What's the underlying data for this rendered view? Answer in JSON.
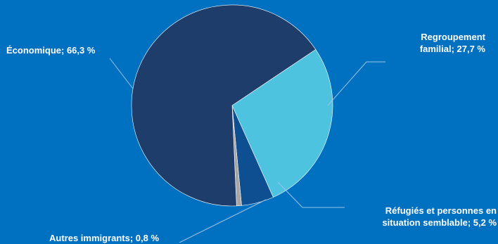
{
  "chart_data": {
    "type": "pie",
    "slices": [
      {
        "label": "Économique; 66,3 %",
        "category": "Économique",
        "value": 66.3,
        "color": "#1F3D6B"
      },
      {
        "label": "Regroupement familial; 27,7 %",
        "category": "Regroupement familial",
        "value": 27.7,
        "color": "#4EC3E0"
      },
      {
        "label": "Réfugiés et personnes en situation semblable; 5,2 %",
        "category": "Réfugiés et personnes en situation semblable",
        "value": 5.2,
        "color": "#0D4F91"
      },
      {
        "label": "Autres immigrants; 0,8 %",
        "category": "Autres immigrants",
        "value": 0.8,
        "color": "#A6A6A6"
      }
    ]
  },
  "labels": {
    "economique": "Économique; 66,3 %",
    "regroupement_line1": "Regroupement",
    "regroupement_line2": "familial; 27,7 %",
    "refugies_line1": "Réfugiés et personnes en",
    "refugies_line2": "situation semblable; 5,2 %",
    "autres": "Autres immigrants; 0,8 %"
  },
  "colors": {
    "background": "#0070C0",
    "label_text": "#FFFFFF",
    "leader_line": "#9DC3E6"
  }
}
